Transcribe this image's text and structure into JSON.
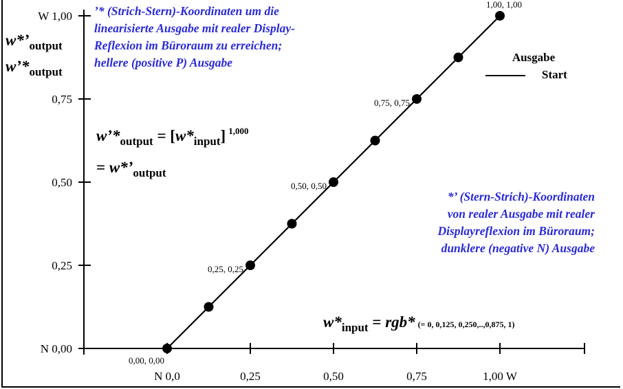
{
  "chart_data": {
    "type": "line",
    "x": [
      0,
      0.125,
      0.25,
      0.375,
      0.5,
      0.625,
      0.75,
      0.875,
      1.0
    ],
    "series": [
      {
        "name": "Start",
        "values": [
          0,
          0.125,
          0.25,
          0.375,
          0.5,
          0.625,
          0.75,
          0.875,
          1.0
        ]
      }
    ],
    "xlim": [
      0,
      1
    ],
    "ylim": [
      0,
      1
    ],
    "x_ticks": [
      {
        "value": 0,
        "label": "N  0,0"
      },
      {
        "value": 0.25,
        "label": "0,25"
      },
      {
        "value": 0.5,
        "label": "0,50"
      },
      {
        "value": 0.75,
        "label": "0,75"
      },
      {
        "value": 1.0,
        "label": "1,00  W"
      }
    ],
    "y_ticks": [
      {
        "value": 0,
        "label": "N 0,00"
      },
      {
        "value": 0.25,
        "label": "0,25"
      },
      {
        "value": 0.5,
        "label": "0,50"
      },
      {
        "value": 0.75,
        "label": "0,75"
      },
      {
        "value": 1.0,
        "label": "W 1,00"
      }
    ],
    "point_labels": [
      {
        "x": 0,
        "y": 0,
        "text": "0,00, 0,00"
      },
      {
        "x": 0.25,
        "y": 0.25,
        "text": "0,25, 0,25"
      },
      {
        "x": 0.5,
        "y": 0.5,
        "text": "0,50, 0,50"
      },
      {
        "x": 0.75,
        "y": 0.75,
        "text": "0,75, 0,75"
      },
      {
        "x": 1.0,
        "y": 1.0,
        "text": "1,00, 1,00"
      }
    ],
    "ylabel": {
      "line1_main": "w*’",
      "line1_sub": "output",
      "line2_main": "w’*",
      "line2_sub": "output"
    },
    "xlabel": {
      "main": "w*",
      "sub": "input",
      "eq": " = ",
      "rhs": "rgb*",
      "note": "(= 0, 0,125, 0,250,..,0,875, 1)"
    },
    "legend": {
      "title": "Ausgabe",
      "entry": "Start",
      "placement": "top-right"
    },
    "formula": {
      "lhs": "w’*",
      "lhs_sub": "output",
      "eq": " = [",
      "arg": "w*",
      "arg_sub": "input",
      "close": "]",
      "exp": "1,000",
      "line2_eq": "= ",
      "line2": "w*’",
      "line2_sub": "output"
    },
    "annotations": {
      "top": [
        "’* (Strich-Stern)-Koordinaten um die",
        "linearisierte Ausgabe mit realer Display-",
        "Reflexion im Büroraum zu erreichen;",
        "hellere (positive P) Ausgabe"
      ],
      "right": [
        "*’ (Stern-Strich)-Koordinaten",
        "von realer Ausgabe mit realer",
        "Displayreflexion im Büroraum;",
        "dunklere (negative N) Ausgabe"
      ]
    },
    "colors": {
      "annotation": "#2a2ad6",
      "line": "#000000",
      "background": "#ffffff"
    },
    "grid": false
  }
}
